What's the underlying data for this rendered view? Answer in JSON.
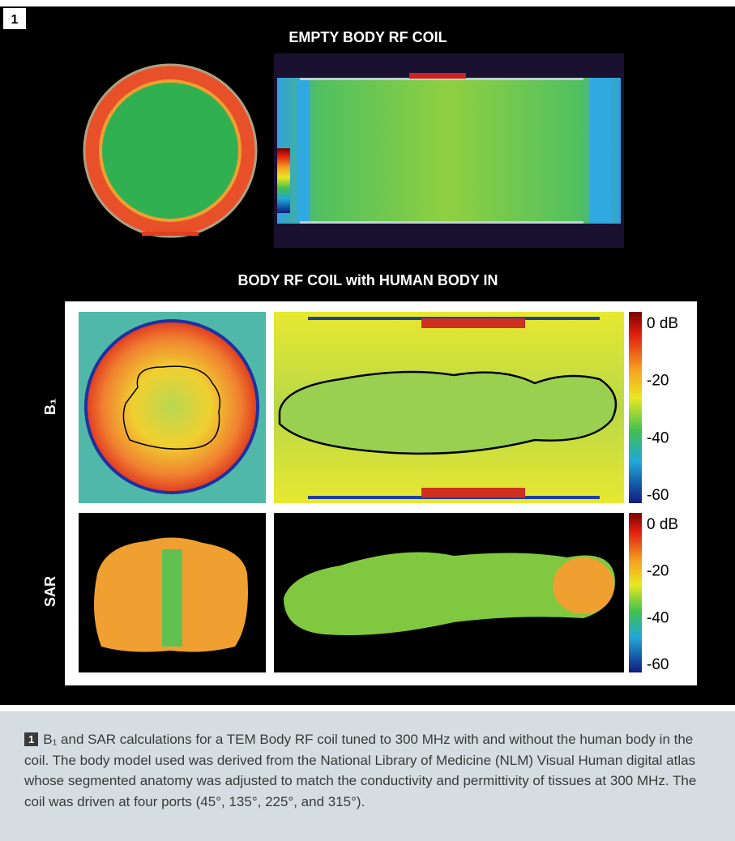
{
  "figure": {
    "number": "1",
    "title_top": "EMPTY BODY RF COIL",
    "title_bottom": "BODY RF COIL with HUMAN BODY IN",
    "rows": [
      {
        "label": "B₁",
        "colorbar": [
          "0 dB",
          "-20",
          "-40",
          "-60"
        ]
      },
      {
        "label": "SAR",
        "colorbar": [
          "0 dB",
          "-20",
          "-40",
          "-60"
        ]
      }
    ]
  },
  "caption": {
    "number": "1",
    "text": "B₁ and SAR calculations for a TEM Body RF coil tuned to 300 MHz with and without the human body in the coil. The body model used was derived from the National Library of Medicine (NLM) Visual Human digital atlas whose segmented anatomy was adjusted to match the conductivity and permittivity of tissues at 300 MHz. The coil was driven at four ports (45°, 135°, 225°, and 315°)."
  }
}
